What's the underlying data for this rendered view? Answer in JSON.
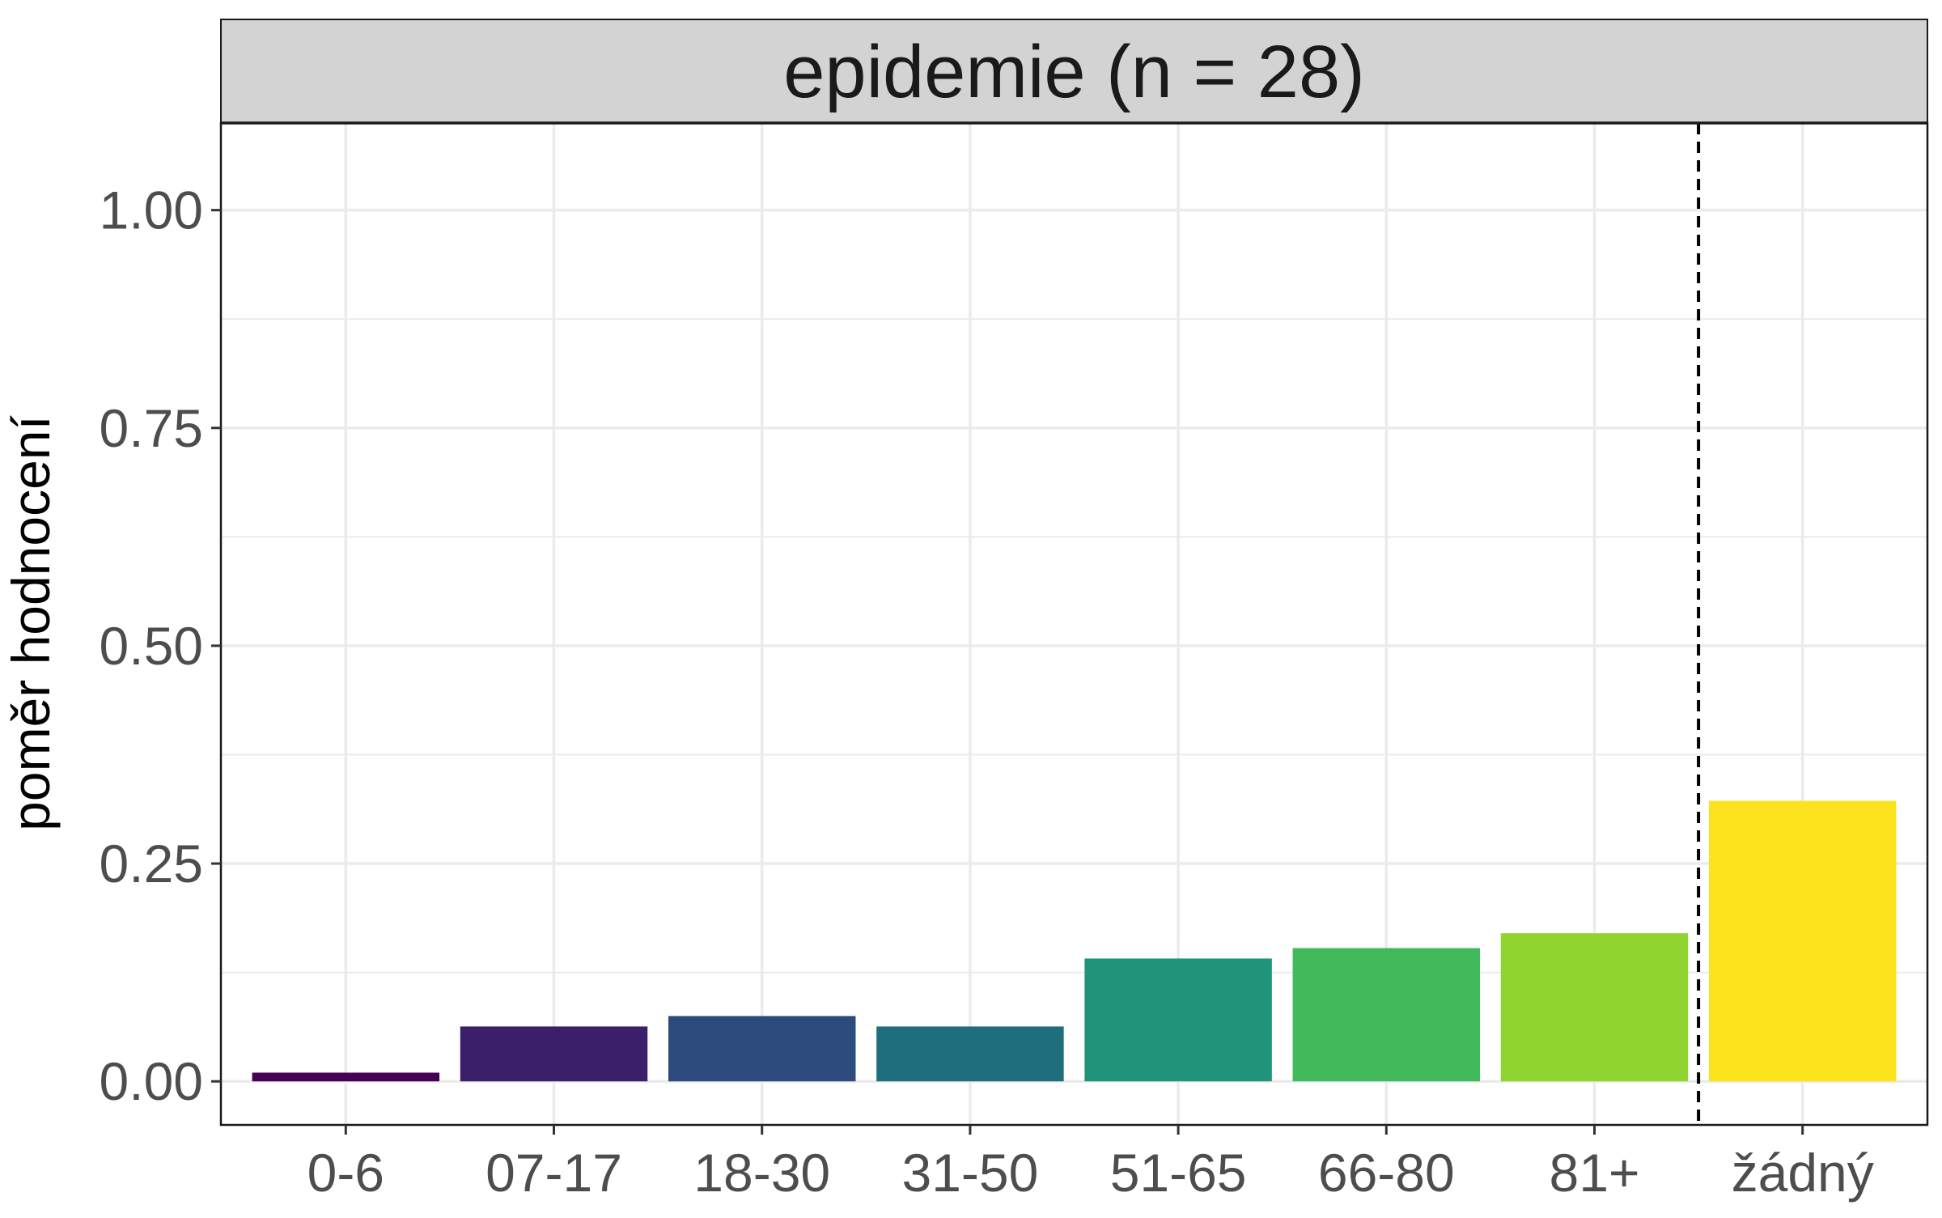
{
  "chart_data": {
    "type": "bar",
    "title": "epidemie (n = 28)",
    "xlabel": "",
    "ylabel": "poměr hodnocení",
    "categories": [
      "0-6",
      "07-17",
      "18-30",
      "31-50",
      "51-65",
      "66-80",
      "81+",
      "žádný"
    ],
    "values": [
      0.01,
      0.063,
      0.075,
      0.063,
      0.141,
      0.153,
      0.17,
      0.322
    ],
    "colors": [
      "#440154",
      "#3B1F6B",
      "#2D4A7C",
      "#1F6E7E",
      "#21937A",
      "#42B95B",
      "#90D52F",
      "#FDE31E"
    ],
    "ylim": [
      -0.05,
      1.1
    ],
    "yticks": [
      0.0,
      0.25,
      0.5,
      0.75,
      1.0
    ],
    "ytick_labels": [
      "0.00",
      "0.25",
      "0.50",
      "0.75",
      "1.00"
    ],
    "reference_line": {
      "between": [
        "81+",
        "žádný"
      ],
      "style": "dashed"
    },
    "grid": true,
    "facet_strip_color": "#D3D3D3",
    "panel_border_color": "#1a1a1a",
    "grid_color": "#EBEBEB",
    "tick_color": "#333333",
    "legend": "none"
  }
}
